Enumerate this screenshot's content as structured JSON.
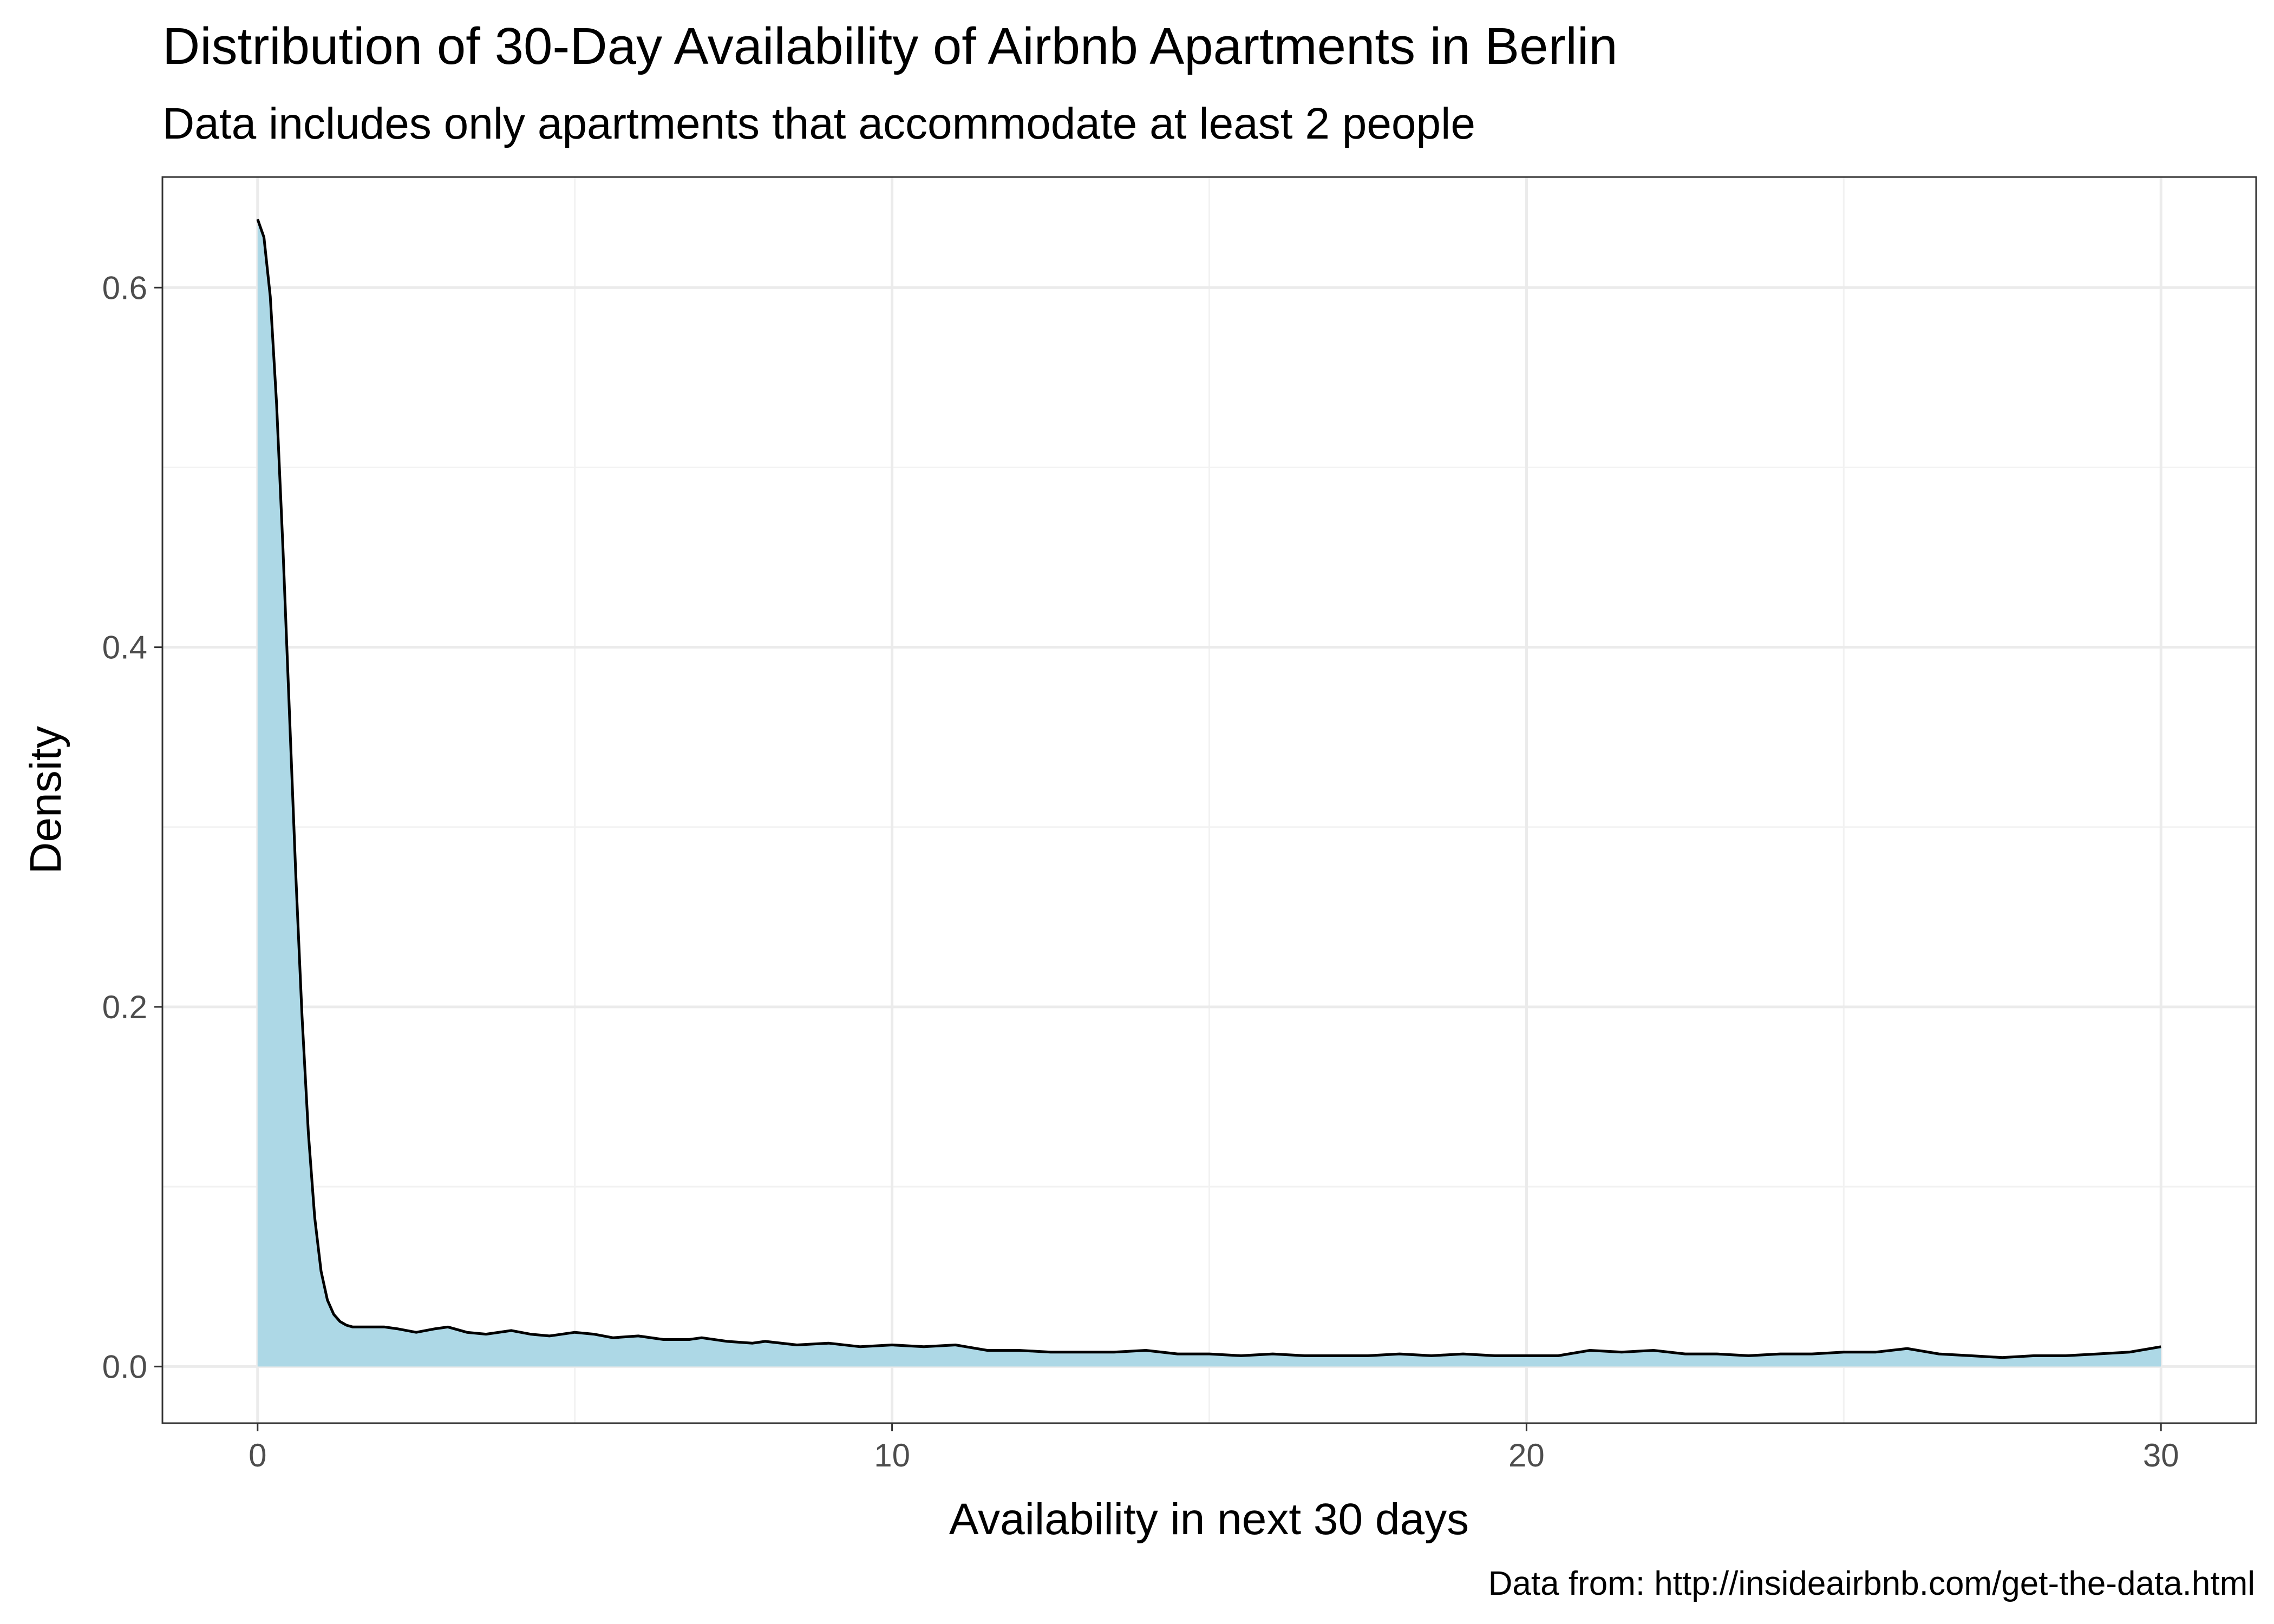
{
  "chart_data": {
    "type": "area",
    "title": "Distribution of 30-Day Availability of Airbnb Apartments in Berlin",
    "subtitle": "Data includes only apartments that accommodate at least 2 people",
    "xlabel": "Availability in next 30 days",
    "ylabel": "Density",
    "caption": "Data from: http://insideairbnb.com/get-the-data.html",
    "xlim": [
      -1.5,
      31.5
    ],
    "ylim": [
      -0.0315,
      0.6615
    ],
    "x_ticks": [
      0,
      10,
      20,
      30
    ],
    "x_tick_labels": [
      "0",
      "10",
      "20",
      "30"
    ],
    "y_ticks": [
      0.0,
      0.2,
      0.4,
      0.6
    ],
    "y_tick_labels": [
      "0.0",
      "0.2",
      "0.4",
      "0.6"
    ],
    "grid": true,
    "legend": "none",
    "fill_color": "#add8e6",
    "line_color": "#000000",
    "series": [
      {
        "x": [
          0,
          0.1,
          0.2,
          0.3,
          0.4,
          0.5,
          0.6,
          0.7,
          0.8,
          0.9,
          1.0,
          1.1,
          1.2,
          1.3,
          1.4,
          1.5,
          1.6,
          1.8,
          2.0,
          2.2,
          2.5,
          2.8,
          3.0,
          3.3,
          3.6,
          4.0,
          4.3,
          4.6,
          5.0,
          5.3,
          5.6,
          6.0,
          6.4,
          6.8,
          7.0,
          7.4,
          7.8,
          8.0,
          8.5,
          9.0,
          9.5,
          10.0,
          10.5,
          11.0,
          11.5,
          12.0,
          12.5,
          13.0,
          13.5,
          14.0,
          14.5,
          15.0,
          15.5,
          16.0,
          16.5,
          17.0,
          17.5,
          18.0,
          18.5,
          19.0,
          19.5,
          20.0,
          20.5,
          21.0,
          21.5,
          22.0,
          22.5,
          23.0,
          23.5,
          24.0,
          24.5,
          25.0,
          25.5,
          26.0,
          26.5,
          27.0,
          27.5,
          28.0,
          28.5,
          29.0,
          29.5,
          30.0
        ],
        "y": [
          0.638,
          0.628,
          0.595,
          0.535,
          0.455,
          0.365,
          0.275,
          0.195,
          0.13,
          0.083,
          0.053,
          0.037,
          0.029,
          0.025,
          0.023,
          0.022,
          0.022,
          0.022,
          0.022,
          0.021,
          0.019,
          0.021,
          0.022,
          0.019,
          0.018,
          0.02,
          0.018,
          0.017,
          0.019,
          0.018,
          0.016,
          0.017,
          0.015,
          0.015,
          0.016,
          0.014,
          0.013,
          0.014,
          0.012,
          0.013,
          0.011,
          0.012,
          0.011,
          0.012,
          0.009,
          0.009,
          0.008,
          0.008,
          0.008,
          0.009,
          0.007,
          0.007,
          0.006,
          0.007,
          0.006,
          0.006,
          0.006,
          0.007,
          0.006,
          0.007,
          0.006,
          0.006,
          0.006,
          0.009,
          0.008,
          0.009,
          0.007,
          0.007,
          0.006,
          0.007,
          0.007,
          0.008,
          0.008,
          0.01,
          0.007,
          0.006,
          0.005,
          0.006,
          0.006,
          0.007,
          0.008,
          0.011
        ]
      }
    ]
  }
}
